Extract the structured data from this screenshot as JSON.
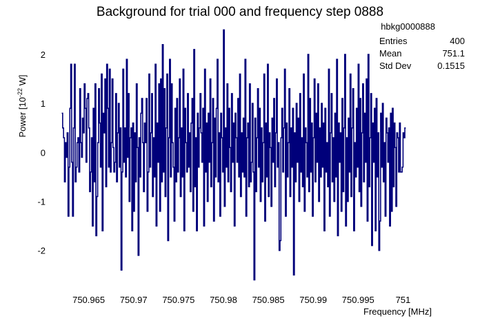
{
  "chart_data": {
    "type": "line",
    "title": "Background for trial 000 and frequency step 0888",
    "xlabel": "Frequency [MHz]",
    "ylabel": "Power [10^-22 W]",
    "ylabel_parts": {
      "main": "Power [10",
      "exp": "-22",
      "unit": " W]"
    },
    "xlim": [
      750.9605,
      751.0035
    ],
    "ylim": [
      -2.65,
      2.45
    ],
    "x_ticks": [
      750.965,
      750.97,
      750.975,
      750.98,
      750.985,
      750.99,
      750.995,
      751.0
    ],
    "x_tick_labels": [
      "750.965",
      "750.97",
      "750.975",
      "750.98",
      "750.985",
      "750.99",
      "750.995",
      "751"
    ],
    "y_ticks": [
      -2,
      -1,
      0,
      1,
      2
    ],
    "y_tick_labels": [
      "-2",
      "-1",
      "0",
      "1",
      "2"
    ],
    "series": [
      {
        "color": "#00007a",
        "x_start": 750.962,
        "x_step": 0.0001,
        "values": [
          0.8,
          0.5,
          0.3,
          -0.6,
          0.2,
          -0.1,
          0.4,
          -1.3,
          -0.3,
          0.9,
          1.8,
          -0.2,
          -1.3,
          0.5,
          1.8,
          -0.6,
          -0.3,
          0.2,
          0.3,
          -0.4,
          1.3,
          0.2,
          -0.1,
          0.7,
          0.4,
          1.4,
          0.9,
          -0.2,
          1.1,
          1.2,
          0.5,
          -0.8,
          -0.4,
          0.3,
          -1.5,
          0.9,
          -0.6,
          1.4,
          -1.7,
          -0.9,
          0.2,
          1.3,
          0.6,
          -0.3,
          1.6,
          -1.6,
          0.8,
          0.4,
          1.5,
          -0.7,
          1.8,
          0.9,
          -0.3,
          1.7,
          -0.4,
          0.2,
          1.5,
          0.1,
          -0.4,
          -0.2,
          1.2,
          -0.6,
          0.4,
          1.0,
          -0.3,
          0.5,
          -2.4,
          -0.4,
          1.7,
          -0.2,
          0.5,
          -0.5,
          1.9,
          -0.1,
          1.2,
          -1.0,
          0.3,
          0.5,
          -1.6,
          0.6,
          -1.2,
          0.4,
          -0.6,
          1.4,
          0.1,
          -2.1,
          0.3,
          -0.5,
          0.8,
          1.1,
          0.2,
          -0.8,
          0.6,
          0.2,
          1.1,
          -1.2,
          -0.4,
          1.6,
          -0.3,
          0.4,
          1.2,
          -0.9,
          0.3,
          -0.5,
          1.8,
          -1.5,
          0.6,
          -0.2,
          1.4,
          -1.2,
          1.5,
          -0.6,
          2.2,
          -0.4,
          1.3,
          -0.9,
          0.5,
          1.6,
          -1.8,
          0.3,
          1.9,
          -0.5,
          1.4,
          0.2,
          -0.3,
          -1.4,
          0.9,
          -0.6,
          1.1,
          -0.4,
          0.3,
          1.5,
          -0.9,
          0.5,
          -0.5,
          1.7,
          -1.6,
          0.9,
          0.2,
          -0.4,
          1.2,
          -0.3,
          0.4,
          -0.8,
          0.6,
          1.1,
          -1.2,
          2.1,
          -0.7,
          0.3,
          -1.6,
          0.8,
          -0.3,
          0.5,
          1.2,
          0.4,
          -0.2,
          0.9,
          -1.5,
          1.7,
          -0.4,
          0.6,
          -1.0,
          0.8,
          -0.2,
          1.5,
          -0.7,
          0.2,
          1.1,
          -1.4,
          0.7,
          -0.5,
          0.9,
          1.9,
          -0.6,
          0.4,
          -1.3,
          0.8,
          0.3,
          -0.4,
          2.5,
          -1.1,
          0.5,
          -0.3,
          1.4,
          -0.6,
          0.9,
          0.1,
          -0.8,
          1.2,
          -0.2,
          0.6,
          -1.5,
          0.8,
          0.3,
          -0.2,
          1.1,
          -0.5,
          1.6,
          -0.9,
          0.4,
          -0.4,
          0.7,
          -0.5,
          1.9,
          -1.3,
          0.3,
          0.6,
          -0.7,
          1.4,
          -0.6,
          -0.2,
          1.0,
          -0.4,
          -2.6,
          0.7,
          -0.8,
          0.3,
          1.3,
          -0.3,
          0.9,
          -1.0,
          0.5,
          -0.6,
          0.2,
          1.6,
          -1.4,
          0.6,
          -0.5,
          1.8,
          -0.9,
          0.4,
          0.1,
          -1.1,
          0.7,
          -0.2,
          1.1,
          -0.7,
          0.4,
          1.5,
          -0.3,
          0.2,
          -2.0,
          -1.8,
          0.3,
          0.9,
          -0.4,
          0.5,
          1.7,
          -1.3,
          0.6,
          -0.5,
          0.2,
          1.3,
          -0.9,
          0.5,
          -0.3,
          0.9,
          -2.5,
          0.4,
          -0.6,
          1.0,
          -0.2,
          0.7,
          -1.0,
          1.2,
          -0.4,
          0.3,
          -0.7,
          1.6,
          -1.2,
          0.5,
          0.2,
          -0.5,
          2.0,
          -0.8,
          1.1,
          -0.4,
          0.6,
          -1.3,
          0.3,
          1.5,
          -0.6,
          0.8,
          -0.2,
          1.4,
          -1.0,
          0.5,
          -0.5,
          1.0,
          -0.3,
          0.6,
          -1.6,
          0.9,
          -0.4,
          0.2,
          -0.7,
          1.7,
          -1.3,
          0.4,
          1.2,
          -0.6,
          0.3,
          -1.0,
          0.8,
          -0.5,
          1.9,
          -1.7,
          0.6,
          -0.2,
          0.4,
          -1.2,
          1.1,
          -0.8,
          0.5,
          2.0,
          -1.5,
          0.3,
          -1.0,
          0.7,
          -0.4,
          1.6,
          -0.9,
          0.5,
          1.3,
          -1.6,
          0.2,
          -0.5,
          0.9,
          -0.3,
          1.8,
          -0.8,
          1.1,
          -1.1,
          0.4,
          1.4,
          -0.6,
          0.8,
          -0.2,
          1.5,
          -1.4,
          2.0,
          -0.7,
          0.3,
          1.2,
          -1.9,
          0.6,
          -0.2,
          0.9,
          -1.6,
          1.1,
          -0.5,
          0.4,
          -2.0,
          -1.4,
          0.8,
          -0.3,
          1.0,
          -0.6,
          0.2,
          -1.3,
          0.7,
          0.4,
          -0.2,
          0.5,
          -1.5,
          0.8,
          -1.2,
          0.9,
          -0.7,
          0.6,
          0.1,
          -1.1,
          0.4,
          0.3,
          -0.4,
          0.6,
          -0.4,
          -0.4,
          -0.3,
          0.4,
          0.3,
          0.5
        ]
      }
    ],
    "stats": {
      "name": "hbkg0000888",
      "rows": [
        {
          "label": "Entries",
          "value": "400"
        },
        {
          "label": "Mean",
          "value": "751.1"
        },
        {
          "label": "Std Dev",
          "value": "0.1515"
        }
      ]
    }
  }
}
